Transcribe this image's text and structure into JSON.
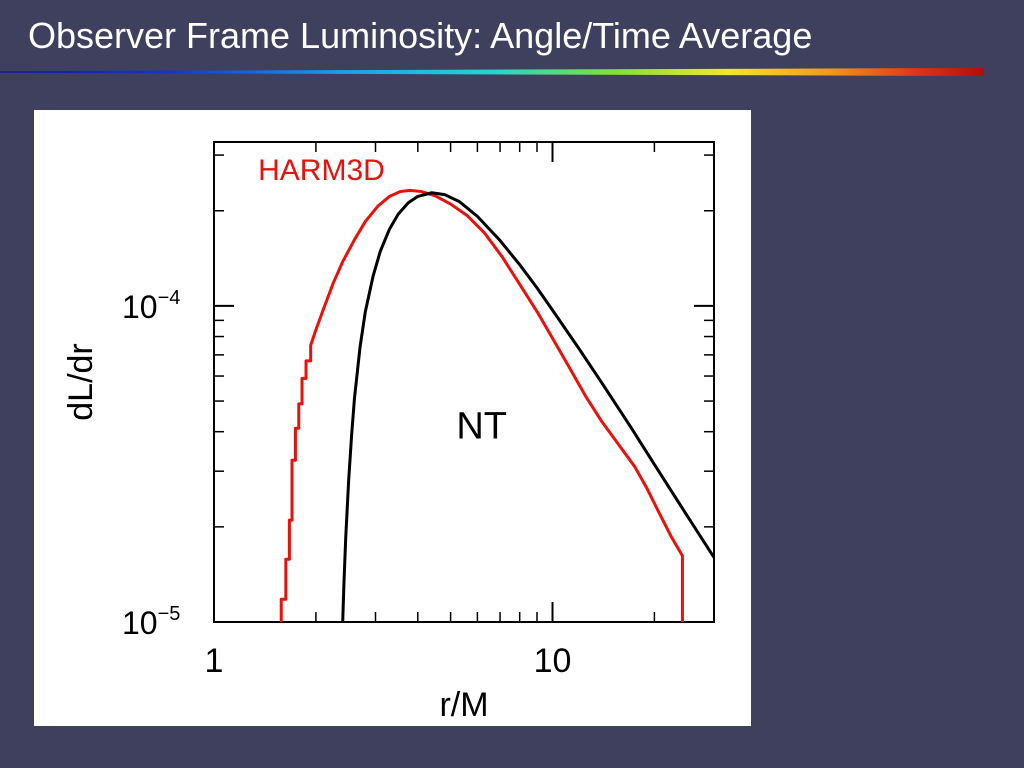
{
  "slide": {
    "title": "Observer Frame Luminosity: Angle/Time Average"
  },
  "chart_data": {
    "type": "line",
    "xlabel": "r/M",
    "ylabel": "dL/dr",
    "x_scale": "log",
    "y_scale": "log",
    "xlim": [
      1,
      30
    ],
    "ylim": [
      1e-05,
      0.00033
    ],
    "x_ticks": [
      {
        "value": 1,
        "label": "1"
      },
      {
        "value": 10,
        "label": "10"
      }
    ],
    "y_ticks": [
      {
        "value": 1e-05,
        "base": "10",
        "exp": "−5"
      },
      {
        "value": 0.0001,
        "base": "10",
        "exp": "−4"
      }
    ],
    "annotations": [
      {
        "text": "HARM3D",
        "x": 1.35,
        "y": 0.00025,
        "color": "#e8120c",
        "size": 30
      },
      {
        "text": "NT",
        "x": 5.2,
        "y": 3.8e-05,
        "color": "#000000",
        "size": 38
      }
    ],
    "series": [
      {
        "name": "HARM3D",
        "color": "#e8120c",
        "points": [
          [
            1.58,
            1e-05
          ],
          [
            1.58,
            1.18e-05
          ],
          [
            1.63,
            1.18e-05
          ],
          [
            1.63,
            1.58e-05
          ],
          [
            1.67,
            1.58e-05
          ],
          [
            1.67,
            2.1e-05
          ],
          [
            1.7,
            2.1e-05
          ],
          [
            1.7,
            3.25e-05
          ],
          [
            1.74,
            3.25e-05
          ],
          [
            1.74,
            4.1e-05
          ],
          [
            1.78,
            4.1e-05
          ],
          [
            1.78,
            4.9e-05
          ],
          [
            1.82,
            4.9e-05
          ],
          [
            1.82,
            5.9e-05
          ],
          [
            1.87,
            5.9e-05
          ],
          [
            1.87,
            6.7e-05
          ],
          [
            1.93,
            6.7e-05
          ],
          [
            1.93,
            7.5e-05
          ],
          [
            2.0,
            8.4e-05
          ],
          [
            2.1,
            9.7e-05
          ],
          [
            2.25,
            0.000118
          ],
          [
            2.4,
            0.000138
          ],
          [
            2.6,
            0.000162
          ],
          [
            2.8,
            0.000185
          ],
          [
            3.05,
            0.000207
          ],
          [
            3.3,
            0.000222
          ],
          [
            3.55,
            0.00023
          ],
          [
            3.8,
            0.000232
          ],
          [
            4.1,
            0.00023
          ],
          [
            4.5,
            0.000223
          ],
          [
            5.0,
            0.00021
          ],
          [
            5.6,
            0.000193
          ],
          [
            6.3,
            0.00017
          ],
          [
            7.1,
            0.000143
          ],
          [
            8.0,
            0.000117
          ],
          [
            9.0,
            9.6e-05
          ],
          [
            10.0,
            7.9e-05
          ],
          [
            11.2,
            6.4e-05
          ],
          [
            12.5,
            5.2e-05
          ],
          [
            14.0,
            4.3e-05
          ],
          [
            15.8,
            3.6e-05
          ],
          [
            17.5,
            3.1e-05
          ],
          [
            19.0,
            2.65e-05
          ],
          [
            20.5,
            2.25e-05
          ],
          [
            22.5,
            1.85e-05
          ],
          [
            24.2,
            1.62e-05
          ],
          [
            24.2,
            1e-05
          ]
        ]
      },
      {
        "name": "NT",
        "color": "#000000",
        "points": [
          [
            2.4,
            1e-05
          ],
          [
            2.42,
            1.32e-05
          ],
          [
            2.45,
            1.85e-05
          ],
          [
            2.5,
            2.82e-05
          ],
          [
            2.55,
            3.9e-05
          ],
          [
            2.6,
            5.1e-05
          ],
          [
            2.7,
            7.4e-05
          ],
          [
            2.8,
            9.6e-05
          ],
          [
            2.95,
            0.000124
          ],
          [
            3.1,
            0.000149
          ],
          [
            3.3,
            0.000175
          ],
          [
            3.5,
            0.000195
          ],
          [
            3.75,
            0.000212
          ],
          [
            4.0,
            0.000222
          ],
          [
            4.4,
            0.000228
          ],
          [
            4.8,
            0.000225
          ],
          [
            5.3,
            0.000214
          ],
          [
            6.0,
            0.000192
          ],
          [
            7.0,
            0.000161
          ],
          [
            8.0,
            0.000135
          ],
          [
            9.0,
            0.000114
          ],
          [
            10.0,
            9.7e-05
          ],
          [
            12.0,
            7.3e-05
          ],
          [
            14.0,
            5.7e-05
          ],
          [
            17.0,
            4.15e-05
          ],
          [
            20.0,
            3.15e-05
          ],
          [
            24.0,
            2.32e-05
          ],
          [
            30.0,
            1.6e-05
          ]
        ]
      }
    ]
  }
}
